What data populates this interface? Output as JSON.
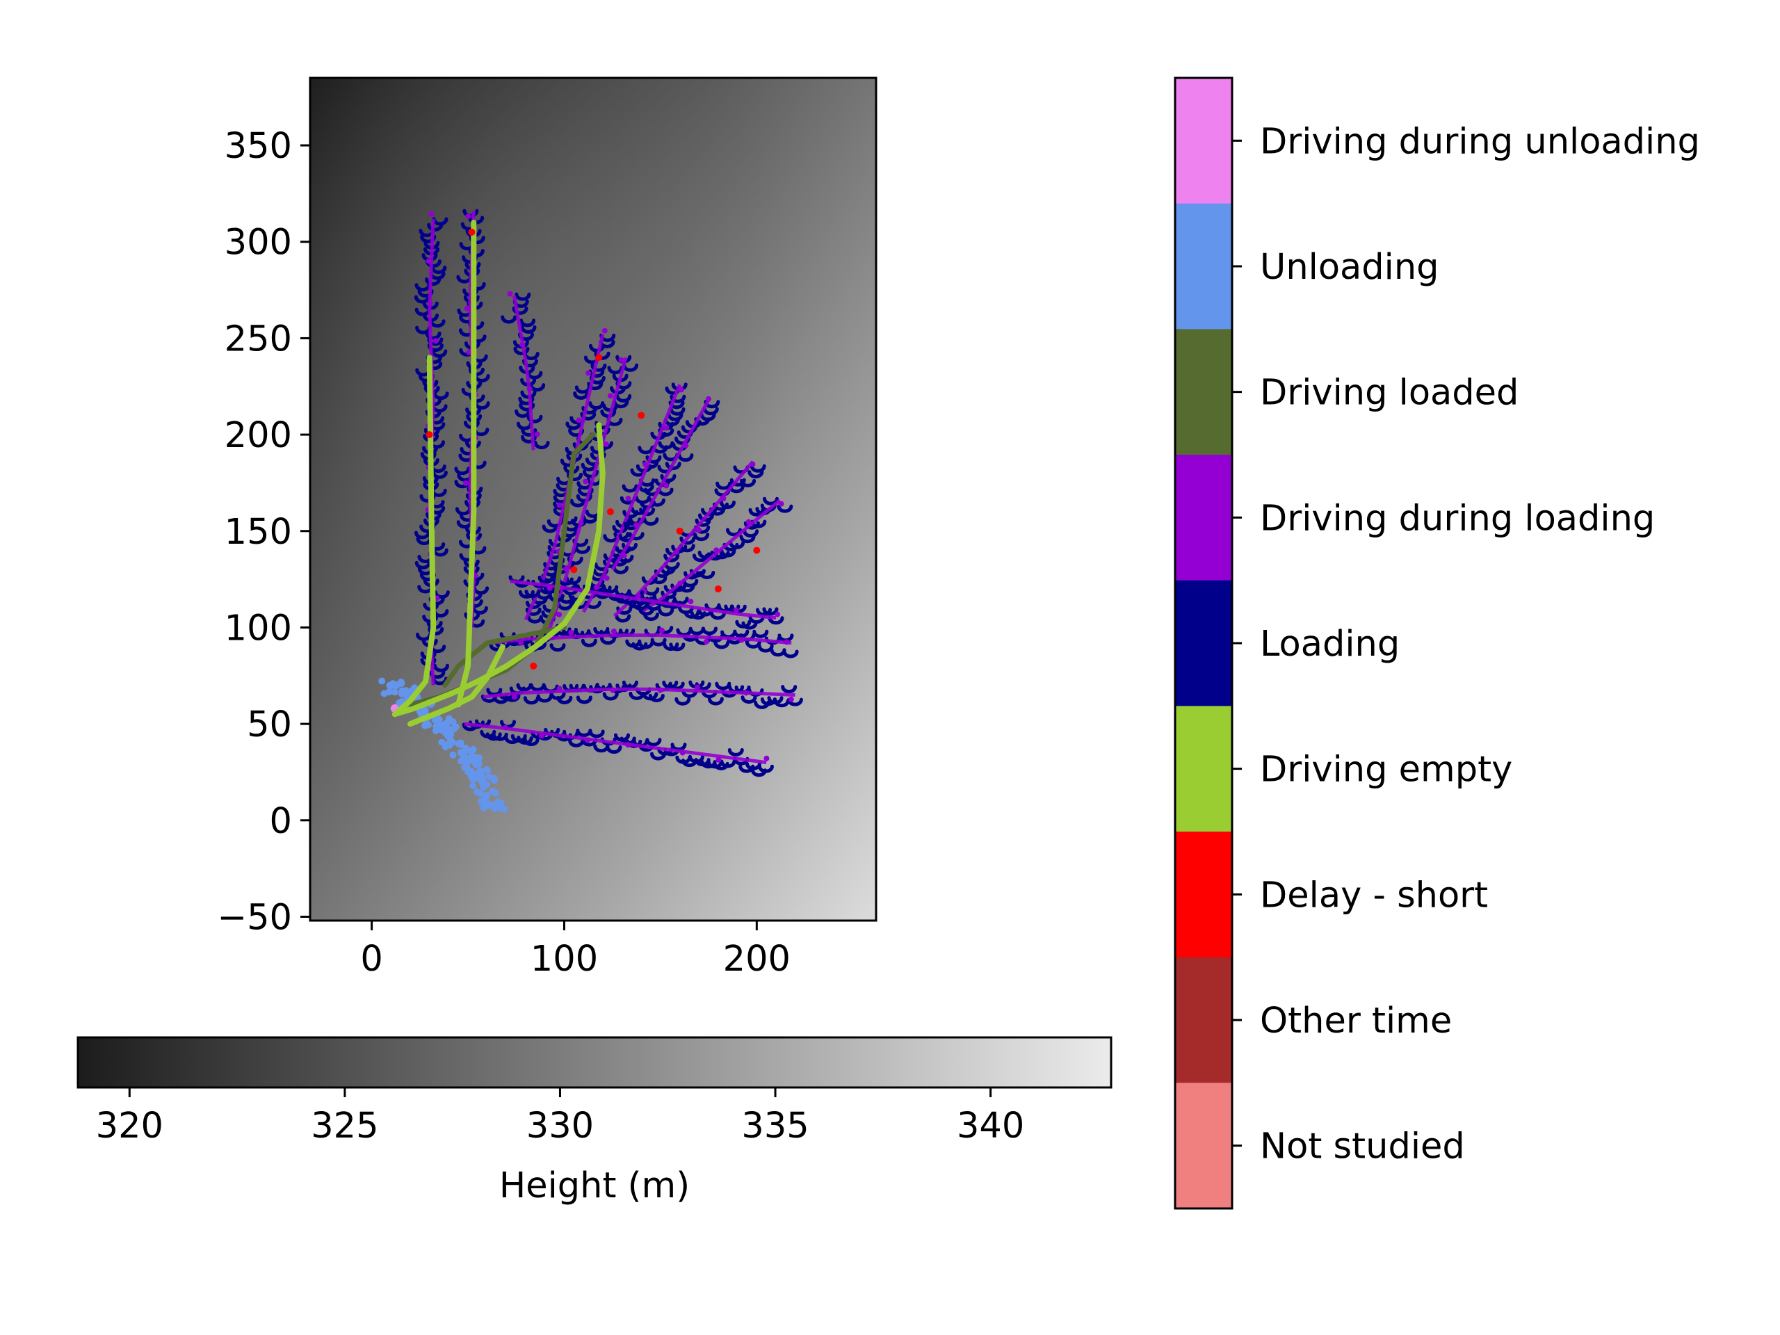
{
  "chart_data": {
    "type": "scatter",
    "description_type": "map-track-scatter-over-heightmap",
    "map": {
      "xlim": [
        -32,
        262
      ],
      "ylim": [
        -52,
        385
      ],
      "xticks": [
        0,
        100,
        200
      ],
      "xtick_labels": [
        "0",
        "100",
        "200"
      ],
      "yticks": [
        -50,
        0,
        50,
        100,
        150,
        200,
        250,
        300,
        350
      ],
      "ytick_labels": [
        "−50",
        "0",
        "50",
        "100",
        "150",
        "200",
        "250",
        "300",
        "350"
      ],
      "background": "grayscale height raster, darker toward upper left, lighter toward bottom"
    },
    "height_colorbar": {
      "label": "Height (m)",
      "range": [
        318.8,
        342.8
      ],
      "ticks": [
        320,
        325,
        330,
        335,
        340
      ],
      "tick_labels": [
        "320",
        "325",
        "330",
        "335",
        "340"
      ],
      "colormap": "gray",
      "orientation": "horizontal"
    },
    "activity_legend": {
      "orientation": "vertical",
      "categories": [
        {
          "label": "Driving during unloading",
          "color": "#ee82ee"
        },
        {
          "label": "Unloading",
          "color": "#6495ed"
        },
        {
          "label": "Driving loaded",
          "color": "#556b2f"
        },
        {
          "label": "Driving during loading",
          "color": "#9400d3"
        },
        {
          "label": "Loading",
          "color": "#00008b"
        },
        {
          "label": "Driving empty",
          "color": "#9acd32"
        },
        {
          "label": "Delay - short",
          "color": "#ff0000"
        },
        {
          "label": "Other time",
          "color": "#a52a2a"
        },
        {
          "label": "Not studied",
          "color": "#f08080"
        }
      ]
    },
    "tracks": {
      "strips_vertical": [
        {
          "x": [
            32,
            31,
            30,
            31,
            32,
            31,
            30,
            31,
            32,
            31,
            32
          ],
          "y": [
            312,
            290,
            265,
            240,
            215,
            190,
            165,
            140,
            115,
            90,
            70
          ]
        },
        {
          "x": [
            53,
            52,
            51,
            52,
            53,
            52,
            51,
            52,
            53,
            52
          ],
          "y": [
            316,
            292,
            268,
            244,
            220,
            196,
            172,
            148,
            124,
            100
          ]
        }
      ],
      "strips_diagonal": [
        {
          "x": [
            74,
            77,
            80,
            82,
            83,
            84
          ],
          "y": [
            272,
            255,
            238,
            222,
            206,
            192
          ]
        },
        {
          "x": [
            120,
            115,
            110,
            105,
            100,
            95,
            88,
            80
          ],
          "y": [
            252,
            230,
            208,
            186,
            164,
            142,
            122,
            104
          ]
        },
        {
          "x": [
            132,
            126,
            120,
            114,
            108,
            102,
            96,
            90
          ],
          "y": [
            240,
            218,
            196,
            174,
            152,
            130,
            110,
            92
          ]
        },
        {
          "x": [
            160,
            152,
            144,
            136,
            128,
            120,
            110
          ],
          "y": [
            226,
            206,
            186,
            166,
            146,
            126,
            108
          ]
        },
        {
          "x": [
            175,
            165,
            155,
            145,
            135,
            125
          ],
          "y": [
            218,
            200,
            182,
            164,
            146,
            130
          ]
        },
        {
          "x": [
            198,
            186,
            174,
            162,
            150,
            138,
            126
          ],
          "y": [
            186,
            172,
            158,
            144,
            130,
            117,
            106
          ]
        },
        {
          "x": [
            212,
            200,
            188,
            176,
            164,
            152,
            140
          ],
          "y": [
            166,
            156,
            146,
            136,
            126,
            116,
            108
          ]
        }
      ],
      "strips_horizontal": [
        {
          "x": [
            210,
            190,
            170,
            150,
            130,
            110,
            90,
            72
          ],
          "y": [
            105,
            107,
            110,
            113,
            116,
            119,
            122,
            124
          ]
        },
        {
          "x": [
            218,
            195,
            172,
            149,
            126,
            103,
            80,
            62
          ],
          "y": [
            92,
            94,
            95,
            96,
            96,
            95,
            94,
            92
          ]
        },
        {
          "x": [
            220,
            196,
            172,
            148,
            124,
            100,
            76,
            58
          ],
          "y": [
            65,
            66,
            67,
            68,
            68,
            67,
            66,
            64
          ]
        },
        {
          "x": [
            205,
            182,
            159,
            136,
            113,
            90,
            67,
            48
          ],
          "y": [
            30,
            33,
            36,
            39,
            42,
            45,
            48,
            50
          ]
        }
      ],
      "driving_empty_paths": [
        {
          "x": [
            12,
            22,
            32,
            42,
            55,
            70,
            85,
            100,
            112,
            118,
            120,
            118
          ],
          "y": [
            55,
            58,
            62,
            66,
            72,
            80,
            90,
            102,
            120,
            150,
            180,
            205
          ]
        },
        {
          "x": [
            12,
            20,
            28,
            32,
            31,
            30
          ],
          "y": [
            55,
            62,
            72,
            100,
            160,
            240
          ]
        },
        {
          "x": [
            20,
            30,
            40,
            52,
            60,
            68
          ],
          "y": [
            50,
            54,
            58,
            64,
            74,
            90
          ]
        },
        {
          "x": [
            45,
            50,
            53,
            53
          ],
          "y": [
            60,
            80,
            160,
            310
          ]
        }
      ],
      "driving_loaded_paths": [
        {
          "x": [
            20,
            35,
            50,
            70,
            85,
            95,
            100,
            105,
            115
          ],
          "y": [
            60,
            64,
            70,
            78,
            90,
            110,
            150,
            190,
            200
          ]
        },
        {
          "x": [
            38,
            45,
            60,
            80,
            100
          ],
          "y": [
            70,
            80,
            92,
            96,
            100
          ]
        }
      ],
      "unloading_area": {
        "x": [
          10,
          20,
          30,
          38,
          48,
          58,
          64
        ],
        "y": [
          70,
          64,
          56,
          48,
          36,
          20,
          5
        ]
      },
      "delay_points": {
        "x": [
          30,
          52,
          118,
          140,
          160,
          200,
          180,
          84,
          124,
          105
        ],
        "y": [
          200,
          305,
          240,
          210,
          150,
          140,
          120,
          80,
          160,
          130
        ]
      }
    }
  }
}
